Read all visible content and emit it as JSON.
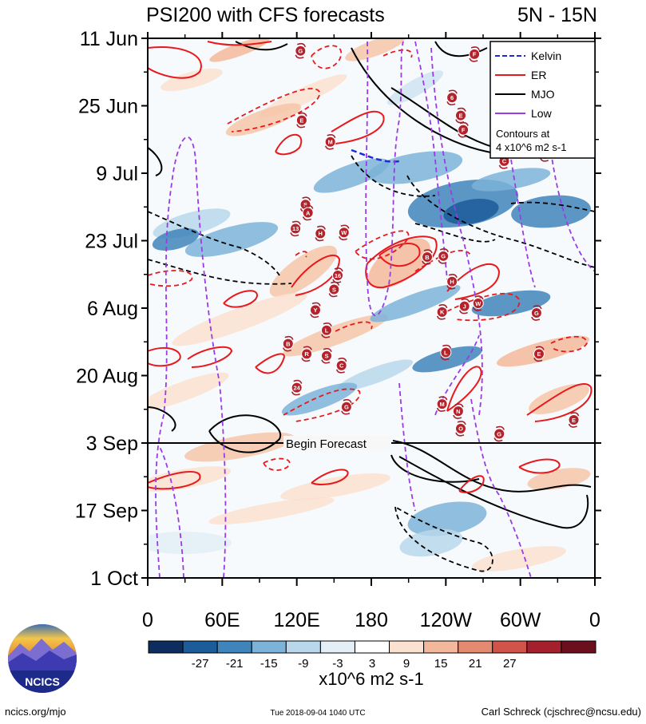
{
  "header": {
    "title": "PSI200 with CFS forecasts",
    "region": "5N - 15N"
  },
  "legend": {
    "items": [
      {
        "label": "Kelvin",
        "color": "#1f2bd8",
        "dashed": true
      },
      {
        "label": "ER",
        "color": "#e8191c",
        "dashed": false
      },
      {
        "label": "MJO",
        "color": "#000000",
        "dashed": false
      },
      {
        "label": "Low",
        "color": "#9b3be6",
        "dashed": false
      }
    ],
    "note_line1": "Contours at",
    "note_line2": "4 x10^6 m2 s-1"
  },
  "forecast_label": "Begin Forecast",
  "colorbar": {
    "ticks": [
      "-27",
      "-21",
      "-15",
      "-9",
      "-3",
      "3",
      "9",
      "15",
      "21",
      "27"
    ],
    "colors": [
      "#0d2d5e",
      "#1c5c99",
      "#3f84bb",
      "#7db3d8",
      "#b9d7ea",
      "#e3eef6",
      "#ffffff",
      "#fbe1cf",
      "#f3b89b",
      "#e48a71",
      "#d1544a",
      "#a5202d",
      "#6b0e1e"
    ],
    "unit": "x10^6 m2 s-1"
  },
  "footer": {
    "site": "ncics.org/mjo",
    "timestamp": "Tue 2018-09-04 1040 UTC",
    "author": "Carl Schreck (cjschrec@ncsu.edu)",
    "logo_text": "NCICS"
  },
  "chart_data": {
    "type": "heatmap",
    "title": "PSI200 with CFS forecasts",
    "subtitle": "5N - 15N",
    "x_ticks": [
      {
        "label": "0",
        "lon": 0
      },
      {
        "label": "60E",
        "lon": 60
      },
      {
        "label": "120E",
        "lon": 120
      },
      {
        "label": "180",
        "lon": 180
      },
      {
        "label": "120W",
        "lon": 240
      },
      {
        "label": "60W",
        "lon": 300
      },
      {
        "label": "0",
        "lon": 360
      }
    ],
    "y_ticks": [
      {
        "label": "11 Jun",
        "day": 0
      },
      {
        "label": "25 Jun",
        "day": 14
      },
      {
        "label": "9 Jul",
        "day": 28
      },
      {
        "label": "23 Jul",
        "day": 42
      },
      {
        "label": "6 Aug",
        "day": 56
      },
      {
        "label": "20 Aug",
        "day": 70
      },
      {
        "label": "3 Sep",
        "day": 84
      },
      {
        "label": "17 Sep",
        "day": 98
      },
      {
        "label": "1 Oct",
        "day": 112
      }
    ],
    "xlim": [
      0,
      360
    ],
    "ylim": [
      0,
      112
    ],
    "forecast_start_day": 84,
    "storm_markers": [
      {
        "label": "G",
        "lon": 123,
        "day": 2.6
      },
      {
        "label": "F",
        "lon": 263,
        "day": 3.3
      },
      {
        "label": "E",
        "lon": 124,
        "day": 17
      },
      {
        "label": "M",
        "lon": 147,
        "day": 21.5
      },
      {
        "label": "6",
        "lon": 245,
        "day": 12.3
      },
      {
        "label": "E",
        "lon": 252,
        "day": 16
      },
      {
        "label": "F",
        "lon": 254,
        "day": 19
      },
      {
        "label": "C",
        "lon": 287,
        "day": 25.5
      },
      {
        "label": "G",
        "lon": 320,
        "day": 24
      },
      {
        "label": "S",
        "lon": 127,
        "day": 34.5
      },
      {
        "label": "A",
        "lon": 129,
        "day": 36.2
      },
      {
        "label": "13",
        "lon": 119,
        "day": 39.5
      },
      {
        "label": "H",
        "lon": 139,
        "day": 40.5
      },
      {
        "label": "W",
        "lon": 158,
        "day": 40.3
      },
      {
        "label": "B",
        "lon": 225,
        "day": 45.4
      },
      {
        "label": "G",
        "lon": 238,
        "day": 45.2
      },
      {
        "label": "16",
        "lon": 153,
        "day": 49.2
      },
      {
        "label": "S",
        "lon": 150,
        "day": 52.1
      },
      {
        "label": "H",
        "lon": 245,
        "day": 50.5
      },
      {
        "label": "Y",
        "lon": 135,
        "day": 56.4
      },
      {
        "label": "J",
        "lon": 255,
        "day": 55.6
      },
      {
        "label": "K",
        "lon": 237,
        "day": 56.8
      },
      {
        "label": "W",
        "lon": 266,
        "day": 55
      },
      {
        "label": "G",
        "lon": 313,
        "day": 57
      },
      {
        "label": "L",
        "lon": 144,
        "day": 60.6
      },
      {
        "label": "B",
        "lon": 113,
        "day": 63.4
      },
      {
        "label": "R",
        "lon": 128,
        "day": 65.5
      },
      {
        "label": "S",
        "lon": 144,
        "day": 65.9
      },
      {
        "label": "C",
        "lon": 156,
        "day": 67.9
      },
      {
        "label": "L",
        "lon": 240,
        "day": 65.2
      },
      {
        "label": "E",
        "lon": 315,
        "day": 65.5
      },
      {
        "label": "24",
        "lon": 120,
        "day": 72.5
      },
      {
        "label": "G",
        "lon": 160,
        "day": 76.5
      },
      {
        "label": "M",
        "lon": 237,
        "day": 75.9
      },
      {
        "label": "N",
        "lon": 250,
        "day": 77.4
      },
      {
        "label": "O",
        "lon": 252,
        "day": 81
      },
      {
        "label": "G",
        "lon": 283,
        "day": 82.1
      },
      {
        "label": "E",
        "lon": 343,
        "day": 79.2
      }
    ]
  }
}
